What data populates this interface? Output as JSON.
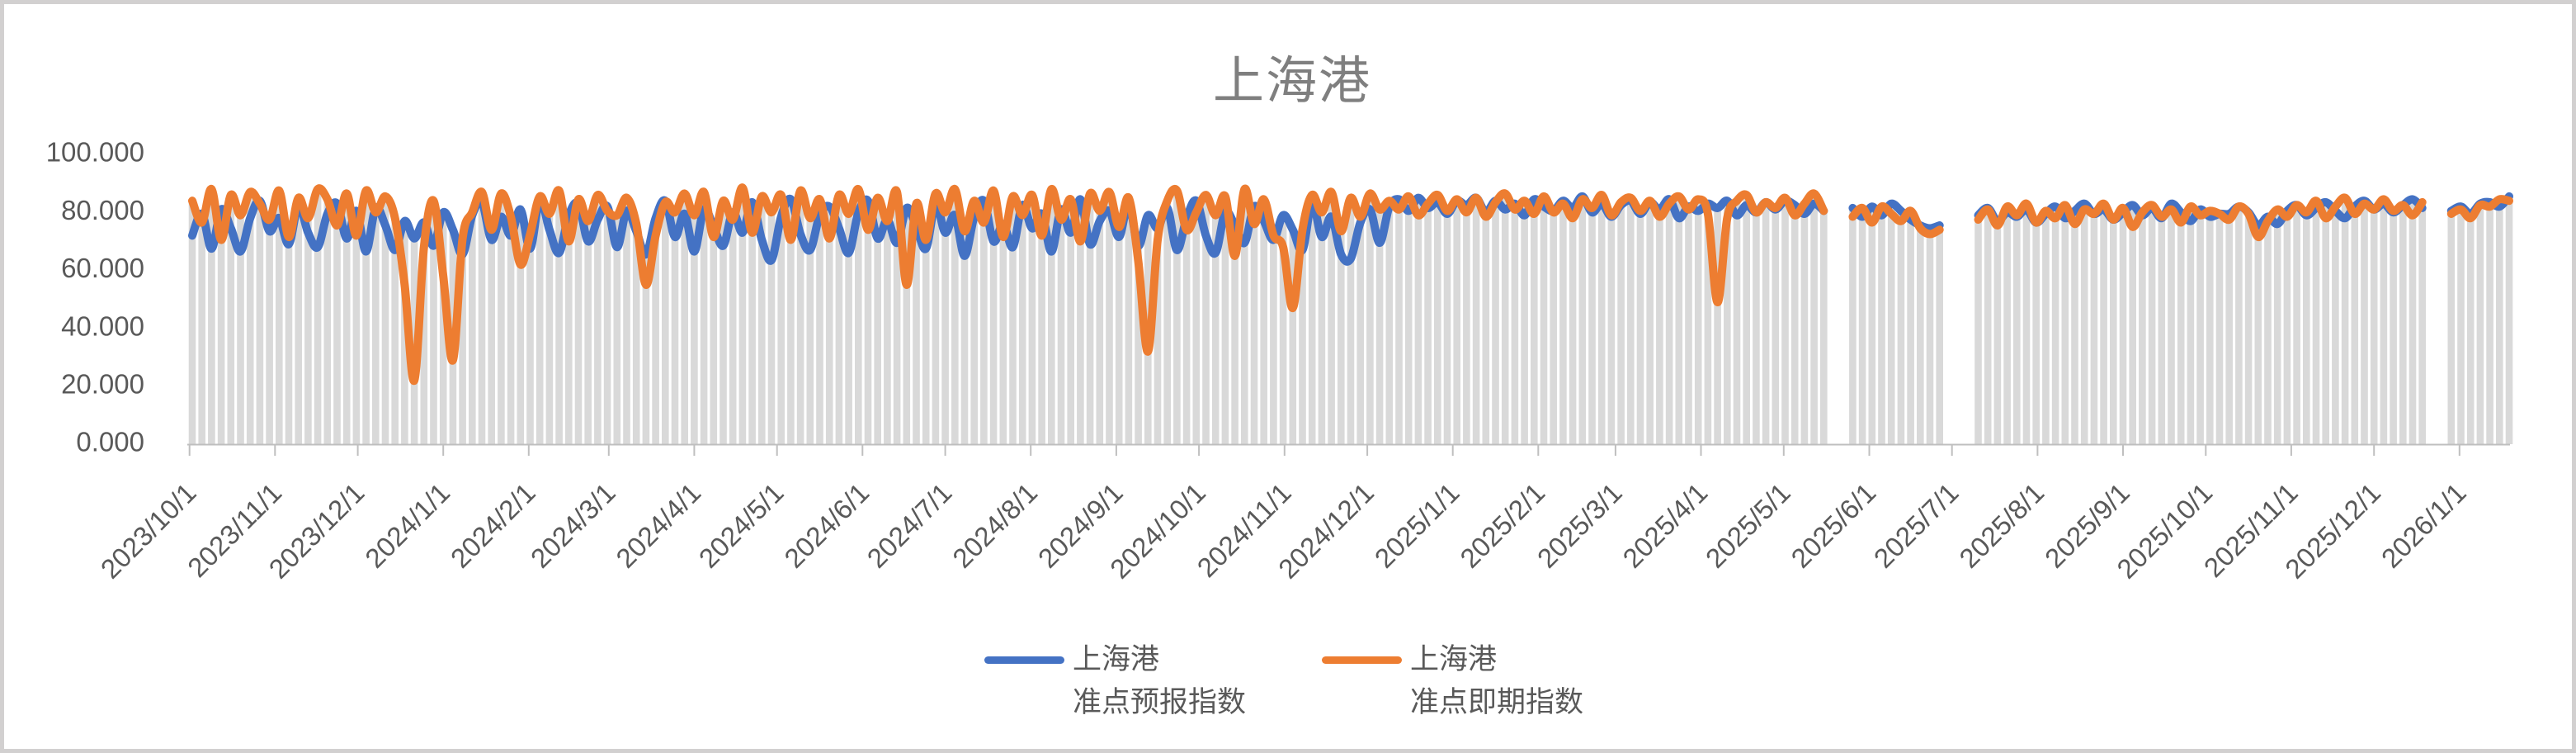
{
  "chart_data": {
    "type": "line",
    "title": "上海港",
    "y_axis": {
      "min": 0,
      "max": 100,
      "ticks": [
        {
          "value": 100,
          "label": "100.000"
        },
        {
          "value": 80,
          "label": "80.000"
        },
        {
          "value": 60,
          "label": "60.000"
        },
        {
          "value": 40,
          "label": "40.000"
        },
        {
          "value": 20,
          "label": "20.000"
        },
        {
          "value": 0,
          "label": "0.000"
        }
      ]
    },
    "x_axis": {
      "start_date": "2023/10/2",
      "interval_days": 3.5,
      "tick_labels": [
        "2023/10/1",
        "2023/11/1",
        "2023/12/1",
        "2024/1/1",
        "2024/2/1",
        "2024/3/1",
        "2024/4/1",
        "2024/5/1",
        "2024/6/1",
        "2024/7/1",
        "2024/8/1",
        "2024/9/1",
        "2024/10/1",
        "2024/11/1",
        "2024/12/1",
        "2025/1/1",
        "2025/2/1",
        "2025/3/1",
        "2025/4/1",
        "2025/5/1",
        "2025/6/1",
        "2025/7/1",
        "2025/8/1",
        "2025/9/1",
        "2025/10/1",
        "2025/11/1",
        "2025/12/1",
        "2026/1/1"
      ]
    },
    "colors": {
      "dropline": "#d9d9d9",
      "axis": "#bfbfbf",
      "labels": "#595959",
      "title": "#7f7f7f"
    },
    "series": [
      {
        "name_line1": "上海港",
        "name_line2": "准点预报指数",
        "color": "#4472C4",
        "values": [
          72.0,
          79.5,
          67.5,
          81.0,
          74.5,
          66.5,
          78.0,
          84.0,
          73.5,
          78.0,
          69.0,
          82.5,
          73.0,
          68.0,
          79.5,
          83.0,
          71.0,
          80.5,
          66.5,
          81.5,
          75.5,
          67.0,
          77.0,
          71.0,
          76.5,
          68.5,
          80.0,
          74.0,
          65.5,
          79.0,
          83.5,
          70.5,
          78.5,
          72.0,
          81.0,
          67.5,
          84.5,
          74.0,
          66.0,
          79.0,
          83.0,
          70.0,
          77.5,
          82.0,
          68.0,
          80.5,
          73.5,
          65.5,
          78.0,
          84.0,
          71.5,
          79.5,
          66.5,
          81.0,
          75.0,
          68.5,
          80.0,
          73.0,
          83.5,
          70.5,
          63.5,
          78.5,
          84.5,
          72.5,
          67.0,
          79.0,
          82.0,
          74.5,
          66.0,
          80.0,
          84.0,
          71.0,
          77.5,
          69.5,
          81.5,
          75.0,
          67.5,
          83.0,
          73.0,
          79.0,
          65.0,
          78.5,
          84.0,
          70.0,
          76.0,
          68.0,
          82.5,
          74.5,
          79.5,
          66.5,
          81.0,
          73.0,
          84.5,
          69.0,
          77.0,
          80.5,
          71.5,
          83.0,
          68.5,
          79.0,
          74.5,
          81.5,
          67.0,
          78.0,
          84.0,
          72.0,
          66.0,
          80.0,
          75.5,
          69.5,
          82.0,
          77.0,
          70.5,
          79.0,
          74.0,
          67.0,
          83.5,
          71.5,
          78.5,
          65.5,
          64.0,
          76.5,
          81.0,
          69.5,
          82.0,
          84.5,
          80.5,
          85.0,
          81.5,
          83.5,
          79.5,
          84.0,
          82.5,
          85.0,
          80.0,
          84.0,
          81.0,
          83.0,
          79.0,
          84.5,
          82.0,
          80.5,
          84.0,
          81.5,
          85.5,
          80.0,
          83.0,
          78.5,
          82.5,
          84.0,
          79.5,
          83.5,
          81.0,
          84.5,
          78.0,
          82.0,
          80.5,
          83.0,
          81.5,
          84.0,
          79.0,
          82.5,
          80.0,
          83.5,
          81.0,
          84.0,
          82.5,
          79.5,
          83.0,
          80.5,
          null,
          null,
          81.5,
          78.5,
          82.0,
          79.0,
          83.0,
          80.5,
          77.5,
          75.5,
          74.5,
          75.5,
          null,
          null,
          null,
          79.0,
          81.5,
          77.0,
          80.0,
          78.5,
          81.0,
          76.5,
          79.5,
          82.0,
          78.0,
          80.5,
          83.0,
          79.5,
          81.0,
          77.5,
          80.0,
          82.5,
          79.0,
          81.5,
          78.0,
          83.0,
          80.0,
          77.0,
          81.0,
          78.5,
          79.5,
          79.5,
          82.0,
          80.0,
          75.5,
          78.5,
          76.0,
          80.5,
          82.5,
          79.0,
          81.5,
          83.5,
          80.5,
          78.0,
          82.0,
          84.0,
          81.0,
          83.0,
          80.0,
          82.5,
          84.5,
          81.5,
          null,
          null,
          80.5,
          82.0,
          79.5,
          83.0,
          83.5,
          82.0,
          85.5
        ]
      },
      {
        "name_line1": "上海港",
        "name_line2": "准点即期指数",
        "color": "#ED7D31",
        "values": [
          84.0,
          76.5,
          88.0,
          70.5,
          86.0,
          79.0,
          87.0,
          83.0,
          77.5,
          87.5,
          71.5,
          85.0,
          78.0,
          88.0,
          84.5,
          75.5,
          86.5,
          72.0,
          87.5,
          80.0,
          85.5,
          78.0,
          55.0,
          22.0,
          68.0,
          84.0,
          58.0,
          29.0,
          71.0,
          80.0,
          87.0,
          74.0,
          86.5,
          78.5,
          62.0,
          72.5,
          85.5,
          79.5,
          87.5,
          70.0,
          84.5,
          77.0,
          86.0,
          80.5,
          79.0,
          85.0,
          76.0,
          55.0,
          72.0,
          83.5,
          80.0,
          86.5,
          79.0,
          87.0,
          71.5,
          84.0,
          77.5,
          88.5,
          73.0,
          85.5,
          80.0,
          86.0,
          70.5,
          87.5,
          78.0,
          84.5,
          71.0,
          86.0,
          79.5,
          88.0,
          74.0,
          85.0,
          77.0,
          87.0,
          55.0,
          83.0,
          70.5,
          86.5,
          80.0,
          88.0,
          73.5,
          84.0,
          76.5,
          87.5,
          71.5,
          85.5,
          79.0,
          86.0,
          72.0,
          88.0,
          77.5,
          84.5,
          70.0,
          86.5,
          80.5,
          87.0,
          75.0,
          85.0,
          63.0,
          32.0,
          70.5,
          84.0,
          87.5,
          74.0,
          80.0,
          86.0,
          79.0,
          85.5,
          65.0,
          88.0,
          76.0,
          84.5,
          72.0,
          68.0,
          47.0,
          74.0,
          86.0,
          80.0,
          87.0,
          73.5,
          85.0,
          78.5,
          86.5,
          81.0,
          84.0,
          81.0,
          85.5,
          79.0,
          83.0,
          86.0,
          80.5,
          84.5,
          80.0,
          85.0,
          78.5,
          83.5,
          86.5,
          81.0,
          84.0,
          79.5,
          85.5,
          80.0,
          83.0,
          78.0,
          84.5,
          81.5,
          86.0,
          79.0,
          83.5,
          85.0,
          80.5,
          84.0,
          78.5,
          83.0,
          85.5,
          81.0,
          84.5,
          79.5,
          49.0,
          78.0,
          84.0,
          86.0,
          80.0,
          83.5,
          81.5,
          85.0,
          79.0,
          83.0,
          86.5,
          80.5,
          null,
          null,
          78.5,
          81.5,
          76.5,
          82.0,
          79.5,
          77.0,
          80.5,
          74.5,
          72.5,
          74.0,
          null,
          null,
          null,
          77.5,
          81.0,
          75.5,
          82.0,
          79.0,
          83.0,
          76.5,
          80.5,
          78.0,
          82.5,
          76.0,
          81.0,
          79.5,
          83.0,
          77.5,
          81.5,
          75.0,
          80.0,
          82.5,
          78.5,
          81.0,
          76.5,
          82.0,
          79.0,
          80.5,
          79.5,
          77.5,
          82.0,
          79.5,
          71.5,
          77.0,
          81.0,
          78.5,
          82.5,
          80.0,
          84.0,
          78.0,
          82.0,
          85.0,
          79.5,
          83.0,
          81.0,
          84.5,
          80.5,
          82.5,
          79.0,
          83.5,
          null,
          null,
          79.5,
          81.0,
          78.0,
          82.5,
          82.0,
          84.5,
          84.0
        ]
      }
    ]
  }
}
